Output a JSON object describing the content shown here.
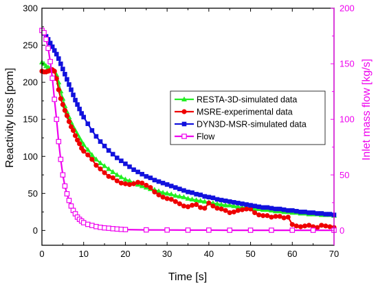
{
  "chart_data": {
    "type": "line",
    "xlabel": "Time [s]",
    "ylabel": "Reactivity loss [pcm]",
    "y2label": "Inlet mass flow [kg/s]",
    "xlim": [
      0,
      70
    ],
    "ylim": [
      -20,
      300
    ],
    "y2lim": [
      -13.33,
      200
    ],
    "x_ticks": [
      0,
      10,
      20,
      30,
      40,
      50,
      60,
      70
    ],
    "y_ticks": [
      0,
      50,
      100,
      150,
      200,
      250,
      300
    ],
    "y2_ticks": [
      0,
      50,
      100,
      150,
      200
    ],
    "legend_position": "right",
    "grid": false,
    "colors": {
      "resta": "#22ee22",
      "msre": "#ee0000",
      "dyn3d": "#1111dd",
      "flow": "#ee00ee",
      "y2axis": "#ee00ee"
    },
    "series": [
      {
        "name": "RESTA-3D-simulated data",
        "key": "resta",
        "axis": "left",
        "marker": "triangle",
        "x": [
          0,
          0.5,
          1,
          1.5,
          2,
          2.5,
          3,
          3.5,
          4,
          4.5,
          5,
          5.5,
          6,
          6.5,
          7,
          7.5,
          8,
          8.5,
          9,
          9.5,
          10,
          11,
          12,
          13,
          14,
          15,
          16,
          17,
          18,
          19,
          20,
          21,
          22,
          23,
          24,
          25,
          26,
          27,
          28,
          29,
          30,
          31,
          32,
          33,
          34,
          35,
          36,
          37,
          38,
          39,
          40,
          41,
          42,
          43,
          44,
          45,
          46,
          47,
          48,
          49,
          50,
          51,
          52,
          53,
          54,
          55,
          56,
          57,
          58,
          59,
          60,
          61,
          62,
          63,
          64,
          65,
          66,
          67,
          68,
          69,
          70
        ],
        "y": [
          227,
          225,
          222,
          220,
          219,
          217,
          215,
          210,
          200,
          188,
          178,
          168,
          160,
          153,
          146,
          140,
          135,
          130,
          125,
          120,
          116,
          109,
          102,
          96,
          91,
          87,
          83,
          79,
          75,
          72,
          69,
          67,
          64,
          62,
          60,
          58,
          56,
          55,
          53,
          51,
          50,
          49,
          47,
          46,
          45,
          43,
          42,
          41,
          40,
          39,
          38,
          37,
          36,
          35,
          34,
          34,
          33,
          32,
          31,
          31,
          30,
          29,
          29,
          28,
          28,
          27,
          26,
          26,
          25,
          25,
          24,
          24,
          23,
          23,
          22,
          22,
          22,
          21,
          21,
          21,
          20
        ]
      },
      {
        "name": "MSRE-experimental data",
        "key": "msre",
        "axis": "left",
        "marker": "circle",
        "x": [
          0,
          0.5,
          1,
          1.5,
          2,
          2.5,
          3,
          3.5,
          4,
          4.5,
          5,
          5.5,
          6,
          6.5,
          7,
          7.5,
          8,
          8.5,
          9,
          9.5,
          10,
          11,
          12,
          13,
          14,
          15,
          16,
          17,
          18,
          19,
          20,
          21,
          22,
          23,
          24,
          25,
          26,
          27,
          28,
          29,
          30,
          31,
          32,
          33,
          34,
          35,
          36,
          37,
          38,
          39,
          40,
          41,
          42,
          43,
          44,
          45,
          46,
          47,
          48,
          49,
          50,
          51,
          52,
          53,
          54,
          55,
          56,
          57,
          58,
          59,
          60,
          61,
          62,
          63,
          64,
          65,
          66,
          67,
          68,
          69,
          70
        ],
        "y": [
          215,
          214,
          214,
          215,
          216,
          217,
          215,
          205,
          190,
          178,
          170,
          162,
          155,
          147,
          140,
          135,
          128,
          122,
          117,
          111,
          107,
          102,
          96,
          88,
          83,
          78,
          73,
          71,
          67,
          64,
          63,
          62,
          63,
          65,
          64,
          61,
          58,
          52,
          48,
          45,
          43,
          42,
          39,
          36,
          33,
          32,
          34,
          35,
          31,
          30,
          37,
          33,
          30,
          29,
          27,
          24,
          25,
          27,
          28,
          29,
          29,
          24,
          21,
          20,
          20,
          18,
          19,
          19,
          17,
          18,
          8,
          6,
          5,
          6,
          7,
          5,
          4,
          7,
          6,
          5,
          4
        ]
      },
      {
        "name": "DYN3D-MSR-simulated data",
        "key": "dyn3d",
        "axis": "left",
        "marker": "square",
        "x": [
          0,
          0.5,
          1,
          1.5,
          2,
          2.5,
          3,
          3.5,
          4,
          4.5,
          5,
          5.5,
          6,
          6.5,
          7,
          7.5,
          8,
          8.5,
          9,
          9.5,
          10,
          11,
          12,
          13,
          14,
          15,
          16,
          17,
          18,
          19,
          20,
          21,
          22,
          23,
          24,
          25,
          26,
          27,
          28,
          29,
          30,
          31,
          32,
          33,
          34,
          35,
          36,
          37,
          38,
          39,
          40,
          41,
          42,
          43,
          44,
          45,
          46,
          47,
          48,
          49,
          50,
          51,
          52,
          53,
          54,
          55,
          56,
          57,
          58,
          59,
          60,
          61,
          62,
          63,
          64,
          65,
          66,
          67,
          68,
          69,
          70
        ],
        "y": [
          270,
          266,
          262,
          258,
          253,
          248,
          243,
          238,
          232,
          225,
          218,
          211,
          204,
          197,
          190,
          183,
          176,
          170,
          164,
          158,
          153,
          144,
          135,
          127,
          120,
          114,
          108,
          103,
          98,
          94,
          90,
          86,
          82,
          79,
          76,
          73,
          71,
          68,
          66,
          64,
          62,
          60,
          58,
          56,
          54,
          52,
          51,
          49,
          48,
          46,
          45,
          44,
          42,
          41,
          40,
          39,
          38,
          37,
          36,
          35,
          34,
          33,
          32,
          31,
          31,
          30,
          29,
          29,
          28,
          27,
          27,
          26,
          25,
          25,
          24,
          24,
          23,
          23,
          22,
          22,
          21
        ]
      },
      {
        "name": "Flow",
        "key": "flow",
        "axis": "right",
        "marker": "open-square",
        "x": [
          0,
          0.5,
          1,
          1.5,
          2,
          2.5,
          3,
          3.5,
          4,
          4.5,
          5,
          5.5,
          6,
          6.5,
          7,
          7.5,
          8,
          8.5,
          9,
          9.5,
          10,
          11,
          12,
          13,
          14,
          15,
          16,
          17,
          18,
          19,
          20,
          25,
          30,
          35,
          40,
          45,
          50,
          55,
          60,
          65,
          70
        ],
        "y": [
          180,
          178,
          172,
          164,
          152,
          137,
          118,
          100,
          80,
          64,
          50,
          40,
          33,
          27,
          22,
          18,
          15,
          12,
          10,
          8.5,
          7,
          5.5,
          4.5,
          3.5,
          2.8,
          2.3,
          2,
          1.6,
          1.3,
          1,
          0.8,
          0.5,
          0.4,
          0.3,
          0.3,
          0.2,
          0.2,
          0.2,
          0.2,
          0.2,
          0.2
        ]
      }
    ]
  }
}
